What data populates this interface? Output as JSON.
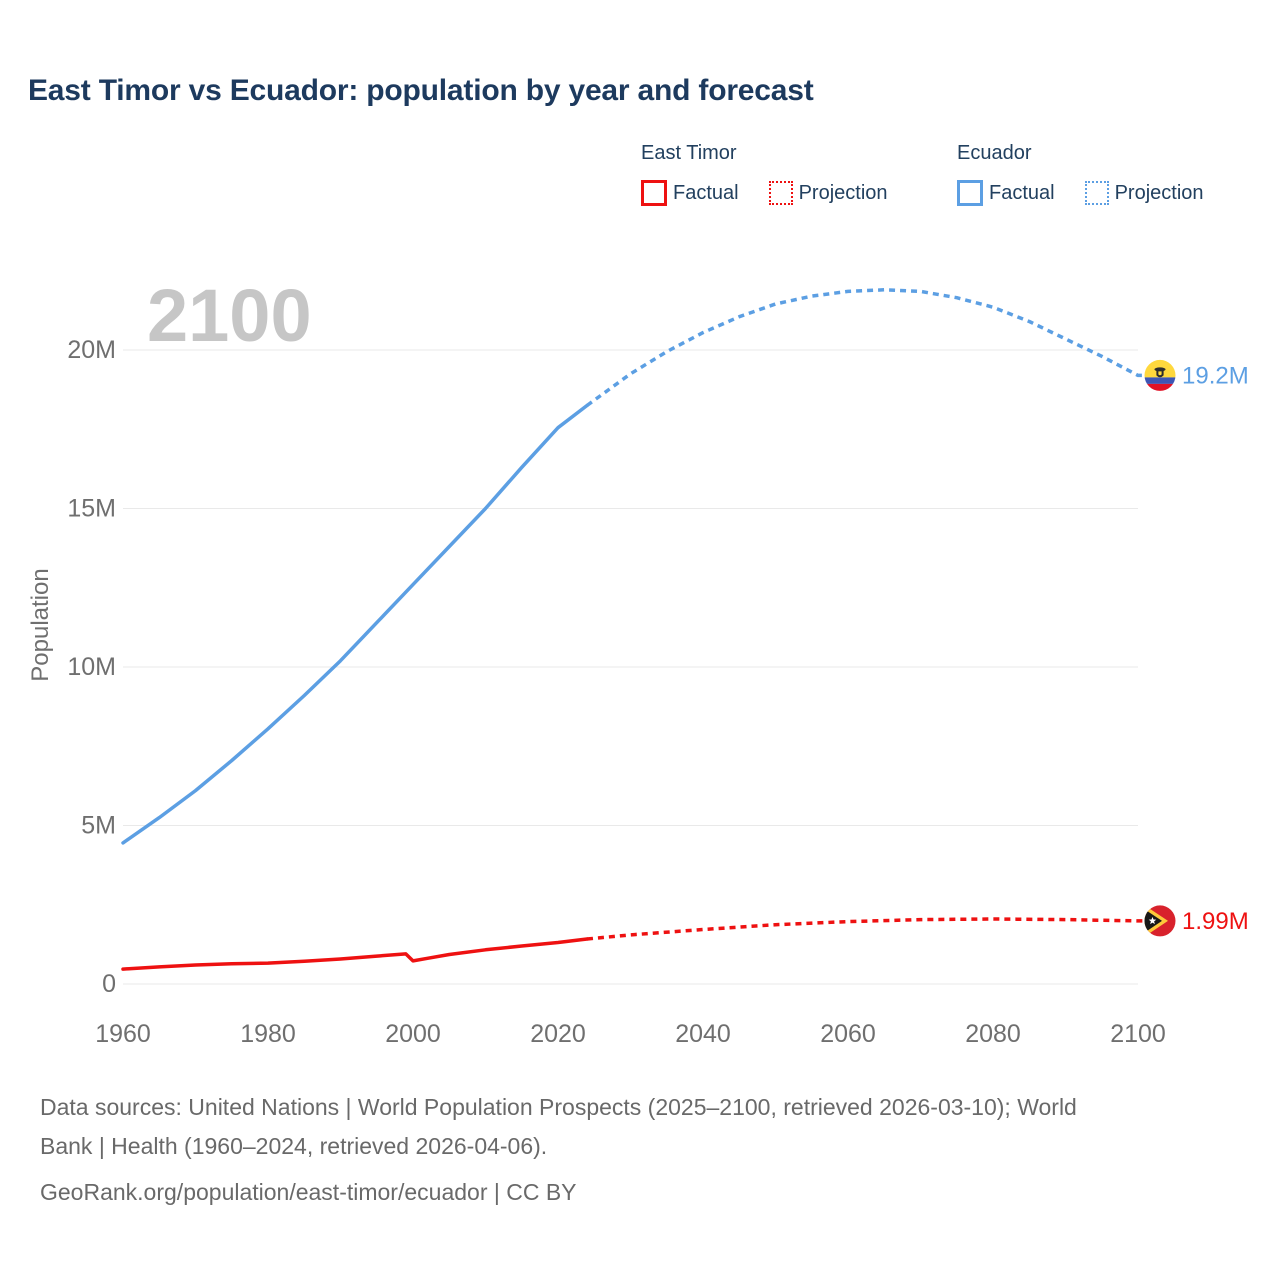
{
  "title": "East Timor vs Ecuador: population by year and forecast",
  "watermark": "2100",
  "legend": {
    "groups": [
      {
        "label": "East Timor",
        "color": "#ee1111",
        "items": [
          {
            "label": "Factual",
            "style": "solid"
          },
          {
            "label": "Projection",
            "style": "dotted"
          }
        ]
      },
      {
        "label": "Ecuador",
        "color": "#5c9fe3",
        "items": [
          {
            "label": "Factual",
            "style": "solid"
          },
          {
            "label": "Projection",
            "style": "dotted"
          }
        ]
      }
    ]
  },
  "chart_data": {
    "type": "line",
    "title": "East Timor vs Ecuador: population by year and forecast",
    "xlabel": "",
    "ylabel": "Population",
    "unit": "millions",
    "xlim": [
      1960,
      2100
    ],
    "ylim": [
      0,
      22.5
    ],
    "grid": "horizontal",
    "legend_position": "top-right",
    "yticks": {
      "values": [
        0,
        5,
        10,
        15,
        20
      ],
      "labels": [
        "0",
        "5M",
        "10M",
        "15M",
        "20M"
      ]
    },
    "xticks": [
      1960,
      1980,
      2000,
      2020,
      2040,
      2060,
      2080,
      2100
    ],
    "series": [
      {
        "name": "Ecuador Factual",
        "color": "#5c9fe3",
        "style": "solid",
        "points": [
          [
            1960,
            4.45
          ],
          [
            1965,
            5.25
          ],
          [
            1970,
            6.1
          ],
          [
            1975,
            7.05
          ],
          [
            1980,
            8.05
          ],
          [
            1985,
            9.1
          ],
          [
            1990,
            10.2
          ],
          [
            1995,
            11.4
          ],
          [
            2000,
            12.6
          ],
          [
            2005,
            13.8
          ],
          [
            2010,
            15.0
          ],
          [
            2015,
            16.3
          ],
          [
            2020,
            17.55
          ],
          [
            2024,
            18.25
          ]
        ]
      },
      {
        "name": "Ecuador Projection",
        "color": "#5c9fe3",
        "style": "dotted",
        "end_label": "19.2M",
        "end_flag": "ecuador",
        "points": [
          [
            2024,
            18.25
          ],
          [
            2030,
            19.25
          ],
          [
            2035,
            19.95
          ],
          [
            2040,
            20.55
          ],
          [
            2045,
            21.05
          ],
          [
            2050,
            21.45
          ],
          [
            2055,
            21.7
          ],
          [
            2060,
            21.85
          ],
          [
            2065,
            21.9
          ],
          [
            2070,
            21.85
          ],
          [
            2075,
            21.65
          ],
          [
            2080,
            21.35
          ],
          [
            2085,
            20.9
          ],
          [
            2090,
            20.35
          ],
          [
            2095,
            19.8
          ],
          [
            2100,
            19.2
          ]
        ]
      },
      {
        "name": "East Timor Factual",
        "color": "#ee1111",
        "style": "solid",
        "points": [
          [
            1960,
            0.47
          ],
          [
            1965,
            0.54
          ],
          [
            1970,
            0.6
          ],
          [
            1975,
            0.64
          ],
          [
            1980,
            0.66
          ],
          [
            1985,
            0.72
          ],
          [
            1990,
            0.79
          ],
          [
            1995,
            0.88
          ],
          [
            1999,
            0.95
          ],
          [
            2000,
            0.73
          ],
          [
            2002,
            0.81
          ],
          [
            2005,
            0.93
          ],
          [
            2010,
            1.08
          ],
          [
            2015,
            1.2
          ],
          [
            2020,
            1.31
          ],
          [
            2024,
            1.42
          ]
        ]
      },
      {
        "name": "East Timor Projection",
        "color": "#ee1111",
        "style": "dotted",
        "end_label": "1.99M",
        "end_flag": "east-timor",
        "points": [
          [
            2024,
            1.42
          ],
          [
            2030,
            1.55
          ],
          [
            2040,
            1.72
          ],
          [
            2050,
            1.87
          ],
          [
            2060,
            1.97
          ],
          [
            2070,
            2.03
          ],
          [
            2080,
            2.05
          ],
          [
            2090,
            2.03
          ],
          [
            2100,
            1.99
          ]
        ]
      }
    ]
  },
  "footer": {
    "lines": [
      "Data sources: United Nations | World Population Prospects (2025–2100, retrieved 2026-03-10); World",
      "Bank | Health (1960–2024, retrieved 2026-04-06).",
      "GeoRank.org/population/east-timor/ecuador | CC BY"
    ]
  }
}
